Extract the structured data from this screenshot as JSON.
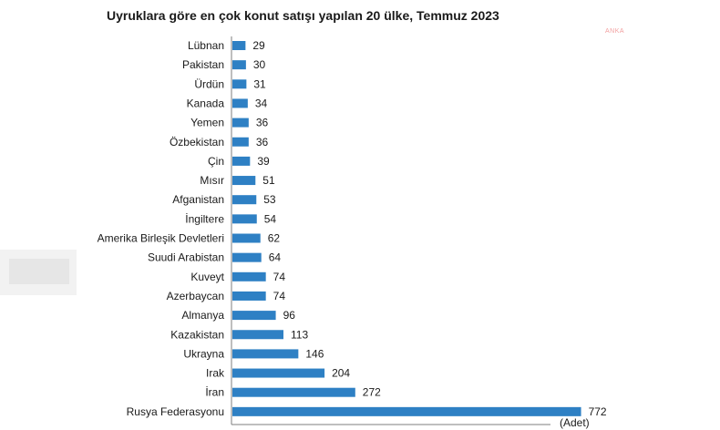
{
  "chart_data": {
    "type": "bar",
    "orientation": "horizontal",
    "title": "Uyruklara göre en çok konut satışı yapılan 20 ülke, Temmuz 2023",
    "unit_label": "(Adet)",
    "categories": [
      "Lübnan",
      "Pakistan",
      "Ürdün",
      "Kanada",
      "Yemen",
      "Özbekistan",
      "Çin",
      "Mısır",
      "Afganistan",
      "İngiltere",
      "Amerika Birleşik Devletleri",
      "Suudi Arabistan",
      "Kuveyt",
      "Azerbaycan",
      "Almanya",
      "Kazakistan",
      "Ukrayna",
      "Irak",
      "İran",
      "Rusya Federasyonu"
    ],
    "values": [
      29,
      30,
      31,
      34,
      36,
      36,
      39,
      51,
      53,
      54,
      62,
      64,
      74,
      74,
      96,
      113,
      146,
      204,
      272,
      772
    ],
    "xlim": [
      0,
      900
    ],
    "grid": false,
    "legend": "none",
    "bar_color": "#2e80c4"
  },
  "watermark": {
    "text": "ANKA"
  },
  "colors": {
    "axis": "#7f7f7f",
    "text": "#1a1a1a"
  }
}
